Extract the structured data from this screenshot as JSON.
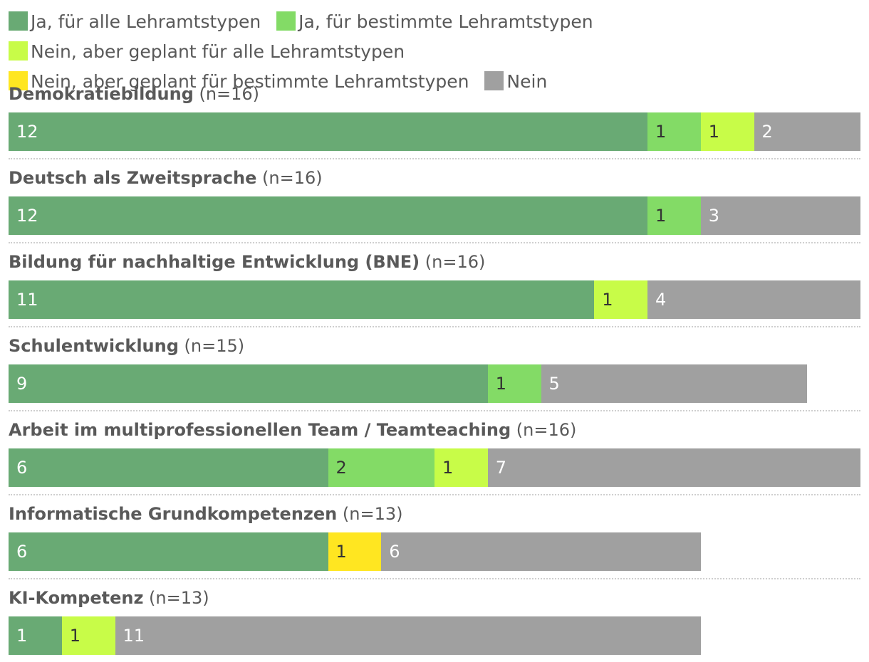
{
  "legend": [
    {
      "label": "Ja, für alle Lehramtstypen",
      "color": "#69aa74"
    },
    {
      "label": "Ja, für bestimmte Lehramtstypen",
      "color": "#83db66"
    },
    {
      "label": "Nein, aber geplant für alle Lehramtstypen",
      "color": "#c8fc48"
    },
    {
      "label": "Nein, aber geplant für bestimmte Lehramtstypen",
      "color": "#ffe621"
    },
    {
      "label": "Nein",
      "color": "#a0a0a0"
    }
  ],
  "chart_data": {
    "type": "bar",
    "orientation": "horizontal",
    "stacked": true,
    "xlim": [
      0,
      16
    ],
    "grid": false,
    "legend_position": "top",
    "series_colors": [
      "#69aa74",
      "#83db66",
      "#c8fc48",
      "#ffe621",
      "#a0a0a0"
    ],
    "label_colors": [
      "#ffffff",
      "#333333",
      "#333333",
      "#333333",
      "#ffffff"
    ],
    "rows": [
      {
        "title": "Demokratiebildung",
        "n": "(n=16)",
        "values": [
          12,
          1,
          1,
          0,
          2
        ]
      },
      {
        "title": "Deutsch als Zweitsprache",
        "n": "(n=16)",
        "values": [
          12,
          1,
          0,
          0,
          3
        ]
      },
      {
        "title": "Bildung für nachhaltige Entwicklung (BNE)",
        "n": "(n=16)",
        "values": [
          11,
          0,
          1,
          0,
          4
        ]
      },
      {
        "title": "Schulentwicklung",
        "n": "(n=15)",
        "values": [
          9,
          1,
          0,
          0,
          5
        ]
      },
      {
        "title": "Arbeit im multiprofessionellen Team / Teamteaching",
        "n": "(n=16)",
        "values": [
          6,
          2,
          1,
          0,
          7
        ]
      },
      {
        "title": "Informatische Grundkompetenzen",
        "n": "(n=13)",
        "values": [
          6,
          0,
          0,
          1,
          6
        ]
      },
      {
        "title": "KI-Kompetenz",
        "n": "(n=13)",
        "values": [
          1,
          0,
          1,
          0,
          11
        ]
      }
    ]
  }
}
